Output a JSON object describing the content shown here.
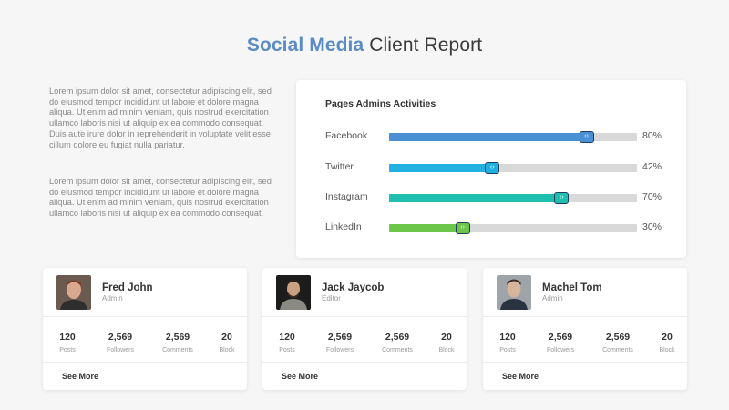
{
  "header": {
    "title_accent": "Social Media",
    "title_rest": "Client Report"
  },
  "paragraphs": [
    "Lorem ipsum dolor sit amet, consectetur adipiscing elit, sed do eiusmod tempor incididunt ut labore et dolore magna aliqua. Ut enim ad minim veniam, quis nostrud exercitation ullamco laboris nisi ut aliquip ex ea commodo consequat. Duis aute irure dolor in reprehenderit in voluptate velit esse cillum dolore eu fugiat nulla pariatur.",
    "Lorem ipsum dolor sit amet, consectetur adipiscing elit, sed do eiusmod tempor incididunt ut labore et dolore magna aliqua. Ut enim ad minim veniam, quis nostrud exercitation ullamco laboris nisi ut aliquip ex ea commodo consequat."
  ],
  "activities": {
    "title": "Pages Admins Activities",
    "items": [
      {
        "label": "Facebook",
        "value": 80,
        "value_text": "80%",
        "color": "#4a8fd4"
      },
      {
        "label": "Twitter",
        "value": 42,
        "value_text": "42%",
        "color": "#22b0e0"
      },
      {
        "label": "Instagram",
        "value": 70,
        "value_text": "70%",
        "color": "#1fbfb0"
      },
      {
        "label": "LinkedIn",
        "value": 30,
        "value_text": "30%",
        "color": "#6cc64a"
      }
    ]
  },
  "cards": [
    {
      "name": "Fred John",
      "role": "Admin",
      "stats": [
        {
          "value": "120",
          "label": "Posts"
        },
        {
          "value": "2,569",
          "label": "Followers"
        },
        {
          "value": "2,569",
          "label": "Comments"
        },
        {
          "value": "20",
          "label": "Block"
        }
      ],
      "see_more": "See More"
    },
    {
      "name": "Jack Jaycob",
      "role": "Editor",
      "stats": [
        {
          "value": "120",
          "label": "Posts"
        },
        {
          "value": "2,569",
          "label": "Followers"
        },
        {
          "value": "2,569",
          "label": "Comments"
        },
        {
          "value": "20",
          "label": "Block"
        }
      ],
      "see_more": "See More"
    },
    {
      "name": "Machel Tom",
      "role": "Admin",
      "stats": [
        {
          "value": "120",
          "label": "Posts"
        },
        {
          "value": "2,569",
          "label": "Followers"
        },
        {
          "value": "2,569",
          "label": "Comments"
        },
        {
          "value": "20",
          "label": "Block"
        }
      ],
      "see_more": "See More"
    }
  ]
}
